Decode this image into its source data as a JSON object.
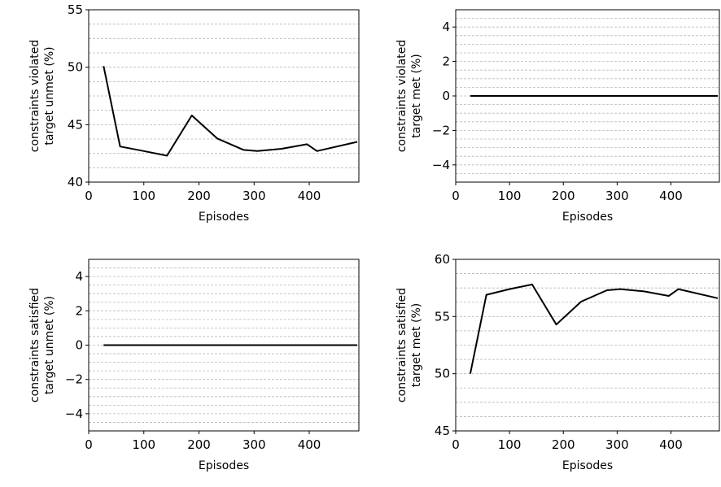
{
  "chart_data": [
    {
      "type": "line",
      "ylabel_lines": [
        "constraints violated",
        "target unmet (%)"
      ],
      "xlabel": "Episodes",
      "xlim": [
        0,
        490
      ],
      "ylim": [
        40,
        55
      ],
      "xticks": [
        0,
        100,
        200,
        300,
        400
      ],
      "yticks": [
        40,
        45,
        50,
        55
      ],
      "grid": "horizontal dashed",
      "series": [
        {
          "color": "#000000",
          "x": [
            27,
            57,
            100,
            142,
            187,
            233,
            281,
            306,
            350,
            396,
            414,
            487
          ],
          "y": [
            50.1,
            43.1,
            42.7,
            42.3,
            45.8,
            43.8,
            42.8,
            42.7,
            42.9,
            43.3,
            42.7,
            43.5
          ]
        }
      ]
    },
    {
      "type": "line",
      "ylabel_lines": [
        "constraints violated",
        "target met (%)"
      ],
      "xlabel": "Episodes",
      "xlim": [
        0,
        490
      ],
      "ylim": [
        -5,
        5
      ],
      "xticks": [
        0,
        100,
        200,
        300,
        400
      ],
      "yticks": [
        -4,
        -2,
        0,
        2,
        4
      ],
      "ytick_labels": [
        "−4",
        "−2",
        "0",
        "2",
        "4"
      ],
      "grid": "horizontal dashed",
      "series": [
        {
          "color": "#000000",
          "x": [
            27,
            487
          ],
          "y": [
            0,
            0
          ]
        }
      ]
    },
    {
      "type": "line",
      "ylabel_lines": [
        "constraints satisfied",
        "target unmet (%)"
      ],
      "xlabel": "Episodes",
      "xlim": [
        0,
        490
      ],
      "ylim": [
        -5,
        5
      ],
      "xticks": [
        0,
        100,
        200,
        300,
        400
      ],
      "yticks": [
        -4,
        -2,
        0,
        2,
        4
      ],
      "ytick_labels": [
        "−4",
        "−2",
        "0",
        "2",
        "4"
      ],
      "grid": "horizontal dashed",
      "series": [
        {
          "color": "#000000",
          "x": [
            27,
            487
          ],
          "y": [
            0,
            0
          ]
        }
      ]
    },
    {
      "type": "line",
      "ylabel_lines": [
        "constraints satisfied",
        "target met (%)"
      ],
      "xlabel": "Episodes",
      "xlim": [
        0,
        490
      ],
      "ylim": [
        45,
        60
      ],
      "xticks": [
        0,
        100,
        200,
        300,
        400
      ],
      "yticks": [
        45,
        50,
        55,
        60
      ],
      "grid": "horizontal dashed",
      "series": [
        {
          "color": "#000000",
          "x": [
            27,
            57,
            100,
            142,
            187,
            233,
            281,
            306,
            350,
            396,
            414,
            487
          ],
          "y": [
            50.0,
            56.9,
            57.4,
            57.8,
            54.3,
            56.3,
            57.3,
            57.4,
            57.2,
            56.8,
            57.4,
            56.6
          ]
        }
      ]
    }
  ]
}
